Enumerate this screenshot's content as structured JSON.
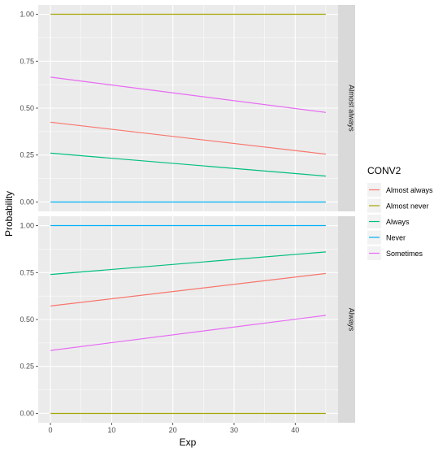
{
  "chart_data": {
    "type": "line",
    "xlabel": "Exp",
    "ylabel": "Probability",
    "xlim": [
      -2,
      47
    ],
    "ylim": [
      -0.05,
      1.05
    ],
    "x_ticks": [
      0,
      10,
      20,
      30,
      40
    ],
    "x_tick_labels": [
      "0",
      "10",
      "20",
      "30",
      "40"
    ],
    "y_ticks": [
      0,
      0.25,
      0.5,
      0.75,
      1
    ],
    "y_tick_labels": [
      "0.00",
      "0.25",
      "0.50",
      "0.75",
      "1.00"
    ],
    "grid": true,
    "legend": {
      "title": "CONV2",
      "position": "right",
      "entries": [
        {
          "key": "almost_always",
          "label": "Almost always",
          "color": "#F8766D"
        },
        {
          "key": "almost_never",
          "label": "Almost never",
          "color": "#A3A500"
        },
        {
          "key": "always",
          "label": "Always",
          "color": "#00BF7D"
        },
        {
          "key": "never",
          "label": "Never",
          "color": "#00B0F6"
        },
        {
          "key": "sometimes",
          "label": "Sometimes",
          "color": "#E76BF3"
        }
      ]
    },
    "panels": [
      {
        "strip": "Almost always",
        "series": [
          {
            "key": "almost_always",
            "x": [
              0,
              45
            ],
            "y": [
              0.425,
              0.255
            ]
          },
          {
            "key": "almost_never",
            "x": [
              0,
              45
            ],
            "y": [
              1.0,
              1.0
            ]
          },
          {
            "key": "always",
            "x": [
              0,
              45
            ],
            "y": [
              0.26,
              0.138
            ]
          },
          {
            "key": "never",
            "x": [
              0,
              45
            ],
            "y": [
              0.0,
              0.0
            ]
          },
          {
            "key": "sometimes",
            "x": [
              0,
              45
            ],
            "y": [
              0.665,
              0.477
            ]
          }
        ]
      },
      {
        "strip": "Always",
        "series": [
          {
            "key": "almost_always",
            "x": [
              0,
              45
            ],
            "y": [
              0.572,
              0.745
            ]
          },
          {
            "key": "almost_never",
            "x": [
              0,
              45
            ],
            "y": [
              0.0,
              0.0
            ]
          },
          {
            "key": "always",
            "x": [
              0,
              45
            ],
            "y": [
              0.74,
              0.86
            ]
          },
          {
            "key": "never",
            "x": [
              0,
              45
            ],
            "y": [
              1.0,
              1.0
            ]
          },
          {
            "key": "sometimes",
            "x": [
              0,
              45
            ],
            "y": [
              0.335,
              0.522
            ]
          }
        ]
      }
    ]
  }
}
